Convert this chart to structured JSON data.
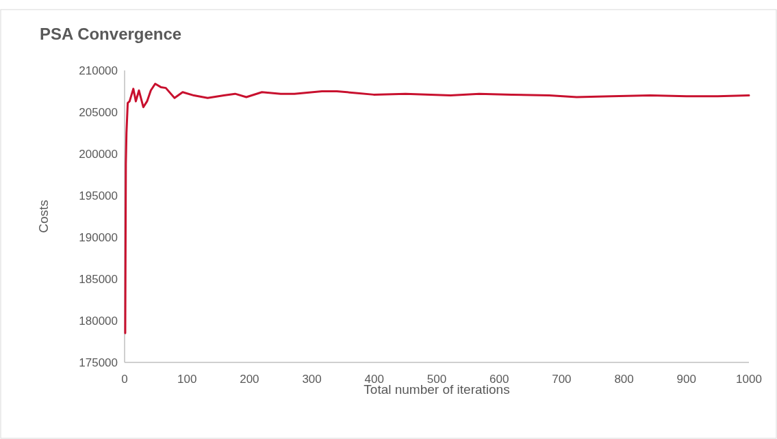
{
  "chart_data": {
    "type": "line",
    "title": "PSA Convergence",
    "xlabel": "Total number of iterations",
    "ylabel": "Costs",
    "xlim": [
      0,
      1000
    ],
    "xticks": [
      0,
      100,
      200,
      300,
      400,
      500,
      600,
      700,
      800,
      900,
      1000
    ],
    "ylim": [
      175000,
      210000
    ],
    "yticks": [
      175000,
      180000,
      185000,
      190000,
      195000,
      200000,
      205000,
      210000
    ],
    "grid": false,
    "marker": "none",
    "line_style": "solid",
    "series": [
      {
        "color": "#c8102e",
        "x": [
          1,
          2,
          3,
          5,
          8,
          14,
          18,
          23,
          30,
          36,
          42,
          49,
          58,
          66,
          80,
          93,
          111,
          133,
          159,
          177,
          195,
          220,
          250,
          272,
          316,
          340,
          370,
          399,
          450,
          522,
          568,
          620,
          680,
          724,
          780,
          842,
          900,
          950,
          1000
        ],
        "values": [
          178500,
          198800,
          202500,
          206100,
          206300,
          207800,
          206300,
          207600,
          205600,
          206300,
          207600,
          208400,
          208000,
          207900,
          206700,
          207400,
          207000,
          206700,
          207000,
          207200,
          206800,
          207400,
          207200,
          207200,
          207500,
          207500,
          207300,
          207100,
          207200,
          207000,
          207200,
          207100,
          207000,
          206800,
          206900,
          207000,
          206900,
          206900,
          207000
        ]
      }
    ]
  }
}
